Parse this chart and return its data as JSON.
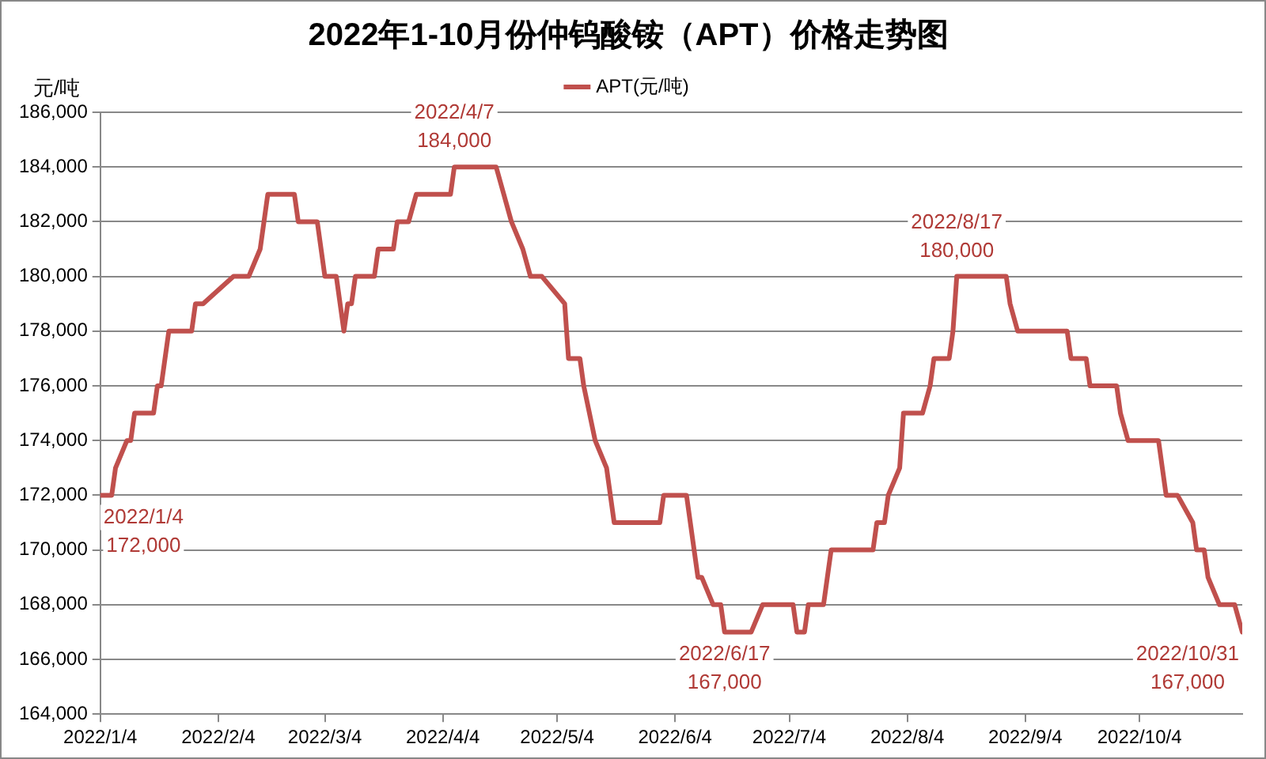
{
  "chart_data": {
    "type": "line",
    "title": "2022年1-10月份仲钨酸铵（APT）价格走势图",
    "ylabel": "元/吨",
    "series": [
      {
        "name": "APT(元/吨)",
        "color": "#c0504d",
        "x": [
          "2022-01-04",
          "2022-01-07",
          "2022-01-08",
          "2022-01-11",
          "2022-01-12",
          "2022-01-13",
          "2022-01-18",
          "2022-01-19",
          "2022-01-20",
          "2022-01-22",
          "2022-01-28",
          "2022-01-29",
          "2022-01-31",
          "2022-02-08",
          "2022-02-12",
          "2022-02-15",
          "2022-02-17",
          "2022-02-24",
          "2022-02-25",
          "2022-03-02",
          "2022-03-04",
          "2022-03-07",
          "2022-03-09",
          "2022-03-10",
          "2022-03-11",
          "2022-03-12",
          "2022-03-17",
          "2022-03-18",
          "2022-03-22",
          "2022-03-23",
          "2022-03-26",
          "2022-03-28",
          "2022-04-06",
          "2022-04-07",
          "2022-04-18",
          "2022-04-20",
          "2022-04-22",
          "2022-04-25",
          "2022-04-27",
          "2022-04-30",
          "2022-05-06",
          "2022-05-07",
          "2022-05-10",
          "2022-05-11",
          "2022-05-14",
          "2022-05-17",
          "2022-05-19",
          "2022-05-31",
          "2022-06-01",
          "2022-06-07",
          "2022-06-10",
          "2022-06-11",
          "2022-06-14",
          "2022-06-16",
          "2022-06-17",
          "2022-06-24",
          "2022-06-27",
          "2022-07-05",
          "2022-07-06",
          "2022-07-08",
          "2022-07-09",
          "2022-07-13",
          "2022-07-15",
          "2022-07-26",
          "2022-07-27",
          "2022-07-29",
          "2022-07-30",
          "2022-08-02",
          "2022-08-03",
          "2022-08-08",
          "2022-08-10",
          "2022-08-11",
          "2022-08-15",
          "2022-08-16",
          "2022-08-17",
          "2022-08-30",
          "2022-08-31",
          "2022-09-02",
          "2022-09-15",
          "2022-09-16",
          "2022-09-20",
          "2022-09-21",
          "2022-09-28",
          "2022-09-29",
          "2022-10-01",
          "2022-10-09",
          "2022-10-10",
          "2022-10-11",
          "2022-10-14",
          "2022-10-18",
          "2022-10-19",
          "2022-10-21",
          "2022-10-22",
          "2022-10-25",
          "2022-10-29",
          "2022-10-31"
        ],
        "values": [
          172000,
          172000,
          173000,
          174000,
          174000,
          175000,
          175000,
          176000,
          176000,
          178000,
          178000,
          179000,
          179000,
          180000,
          180000,
          181000,
          183000,
          183000,
          182000,
          182000,
          180000,
          180000,
          178000,
          179000,
          179000,
          180000,
          180000,
          181000,
          181000,
          182000,
          182000,
          183000,
          183000,
          184000,
          184000,
          183000,
          182000,
          181000,
          180000,
          180000,
          179000,
          177000,
          177000,
          176000,
          174000,
          173000,
          171000,
          171000,
          172000,
          172000,
          169000,
          169000,
          168000,
          168000,
          167000,
          167000,
          168000,
          168000,
          167000,
          167000,
          168000,
          168000,
          170000,
          170000,
          171000,
          171000,
          172000,
          173000,
          175000,
          175000,
          176000,
          177000,
          177000,
          178000,
          180000,
          180000,
          179000,
          178000,
          178000,
          177000,
          177000,
          176000,
          176000,
          175000,
          174000,
          174000,
          173000,
          172000,
          172000,
          171000,
          170000,
          170000,
          169000,
          168000,
          168000,
          167000
        ]
      }
    ],
    "xlim": [
      "2022-01-04",
      "2022-10-31"
    ],
    "xticks": [
      {
        "value": "2022-01-04",
        "label": "2022/1/4"
      },
      {
        "value": "2022-02-04",
        "label": "2022/2/4"
      },
      {
        "value": "2022-03-04",
        "label": "2022/3/4"
      },
      {
        "value": "2022-04-04",
        "label": "2022/4/4"
      },
      {
        "value": "2022-05-04",
        "label": "2022/5/4"
      },
      {
        "value": "2022-06-04",
        "label": "2022/6/4"
      },
      {
        "value": "2022-07-04",
        "label": "2022/7/4"
      },
      {
        "value": "2022-08-04",
        "label": "2022/8/4"
      },
      {
        "value": "2022-09-04",
        "label": "2022/9/4"
      },
      {
        "value": "2022-10-04",
        "label": "2022/10/4"
      }
    ],
    "ylim": [
      164000,
      186000
    ],
    "yticks": [
      {
        "value": 164000,
        "label": "164,000"
      },
      {
        "value": 166000,
        "label": "166,000"
      },
      {
        "value": 168000,
        "label": "168,000"
      },
      {
        "value": 170000,
        "label": "170,000"
      },
      {
        "value": 172000,
        "label": "172,000"
      },
      {
        "value": 174000,
        "label": "174,000"
      },
      {
        "value": 176000,
        "label": "176,000"
      },
      {
        "value": 178000,
        "label": "178,000"
      },
      {
        "value": 180000,
        "label": "180,000"
      },
      {
        "value": 182000,
        "label": "182,000"
      },
      {
        "value": 184000,
        "label": "184,000"
      },
      {
        "value": 186000,
        "label": "186,000"
      }
    ],
    "grid": "y",
    "legend": "top",
    "marker": "none",
    "line_style": "solid",
    "annotations": [
      {
        "text": "2022/1/4\n172,000",
        "x": "2022-01-04",
        "y": 172000
      },
      {
        "text": "2022/4/7\n184,000",
        "x": "2022-04-07",
        "y": 184000
      },
      {
        "text": "2022/6/17\n167,000",
        "x": "2022-06-17",
        "y": 167000
      },
      {
        "text": "2022/8/17\n180,000",
        "x": "2022-08-17",
        "y": 180000
      },
      {
        "text": "2022/10/31\n167,000",
        "x": "2022-10-31",
        "y": 167000
      }
    ]
  }
}
